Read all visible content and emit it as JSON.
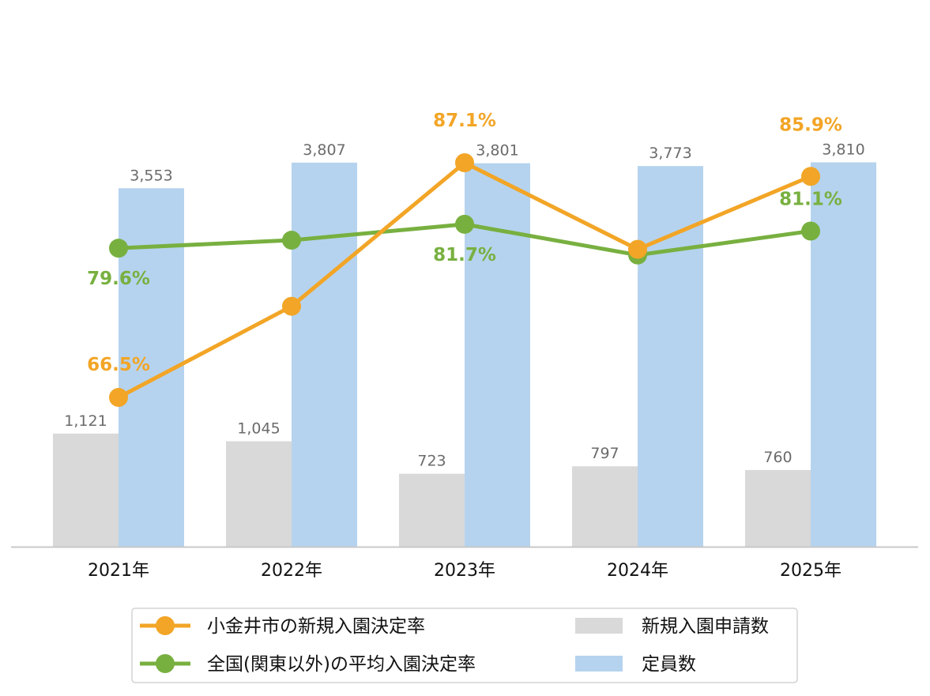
{
  "chart_data": {
    "type": "bar",
    "categories": [
      "2021年",
      "2022年",
      "2023年",
      "2024年",
      "2025年"
    ],
    "bar_series": [
      {
        "name": "新規入園申請数",
        "color": "#d9d9d9",
        "values": [
          1121,
          1045,
          723,
          797,
          760
        ],
        "value_labels": [
          "1,121",
          "1,045",
          "723",
          "797",
          "760"
        ]
      },
      {
        "name": "定員数",
        "color": "#b5d3ee",
        "values": [
          3553,
          3807,
          3801,
          3773,
          3810
        ],
        "value_labels": [
          "3,553",
          "3,807",
          "3,801",
          "3,773",
          "3,810"
        ]
      }
    ],
    "line_series": [
      {
        "name": "小金井市の新規入園決定率",
        "color": "#f2a526",
        "values": [
          66.5,
          74.5,
          87.1,
          79.5,
          85.9
        ],
        "value_labels": [
          "66.5%",
          "",
          "87.1%",
          "",
          "85.9%"
        ]
      },
      {
        "name": "全国(関東以外)の平均入園決定率",
        "color": "#78b040",
        "values": [
          79.6,
          80.3,
          81.7,
          79.0,
          81.1
        ],
        "value_labels": [
          "79.6%",
          "",
          "81.7%",
          "",
          "81.1%"
        ]
      }
    ],
    "bar_ylim": [
      0,
      5000
    ],
    "line_ylim": [
      45,
      95
    ],
    "grid": false,
    "legend_position": "bottom"
  },
  "legend": {
    "line1": "小金井市の新規入園決定率",
    "line2": "全国(関東以外)の平均入園決定率",
    "bar1": "新規入園申請数",
    "bar2": "定員数"
  }
}
